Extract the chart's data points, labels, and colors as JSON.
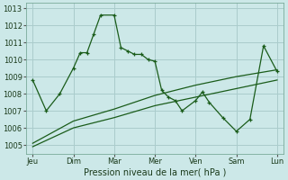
{
  "xlabel": "Pression niveau de la mer( hPa )",
  "xlabels": [
    "Jeu",
    "Dim",
    "Mar",
    "Mer",
    "Ven",
    "Sam",
    "Lun"
  ],
  "xticks": [
    0,
    3,
    6,
    9,
    12,
    15,
    18
  ],
  "ylim": [
    1004.5,
    1013.3
  ],
  "yticks": [
    1005,
    1006,
    1007,
    1008,
    1009,
    1010,
    1011,
    1012,
    1013
  ],
  "background_color": "#cce8e8",
  "grid_color": "#aacccc",
  "line_color": "#1a5c1a",
  "line1_x": [
    0,
    1,
    2,
    3,
    3.5,
    4,
    4.5,
    5,
    6,
    6.5,
    7,
    7.5,
    8,
    8.5,
    9,
    9.5,
    10,
    10.5,
    11,
    12,
    12.5,
    13,
    14,
    15,
    16,
    17,
    18
  ],
  "line1_y": [
    1008.8,
    1007.0,
    1008.0,
    1009.5,
    1010.4,
    1010.4,
    1011.5,
    1012.6,
    1012.6,
    1010.7,
    1010.5,
    1010.3,
    1010.3,
    1010.0,
    1009.9,
    1008.2,
    1007.8,
    1007.6,
    1007.0,
    1007.6,
    1008.1,
    1007.5,
    1006.6,
    1005.8,
    1006.5,
    1010.8,
    1009.3
  ],
  "line2_x": [
    0,
    3,
    6,
    9,
    12,
    15,
    18
  ],
  "line2_y": [
    1005.1,
    1006.4,
    1007.1,
    1007.9,
    1008.5,
    1009.0,
    1009.4
  ],
  "line3_x": [
    0,
    3,
    6,
    9,
    12,
    15,
    18
  ],
  "line3_y": [
    1004.9,
    1006.0,
    1006.6,
    1007.3,
    1007.8,
    1008.3,
    1008.8
  ]
}
